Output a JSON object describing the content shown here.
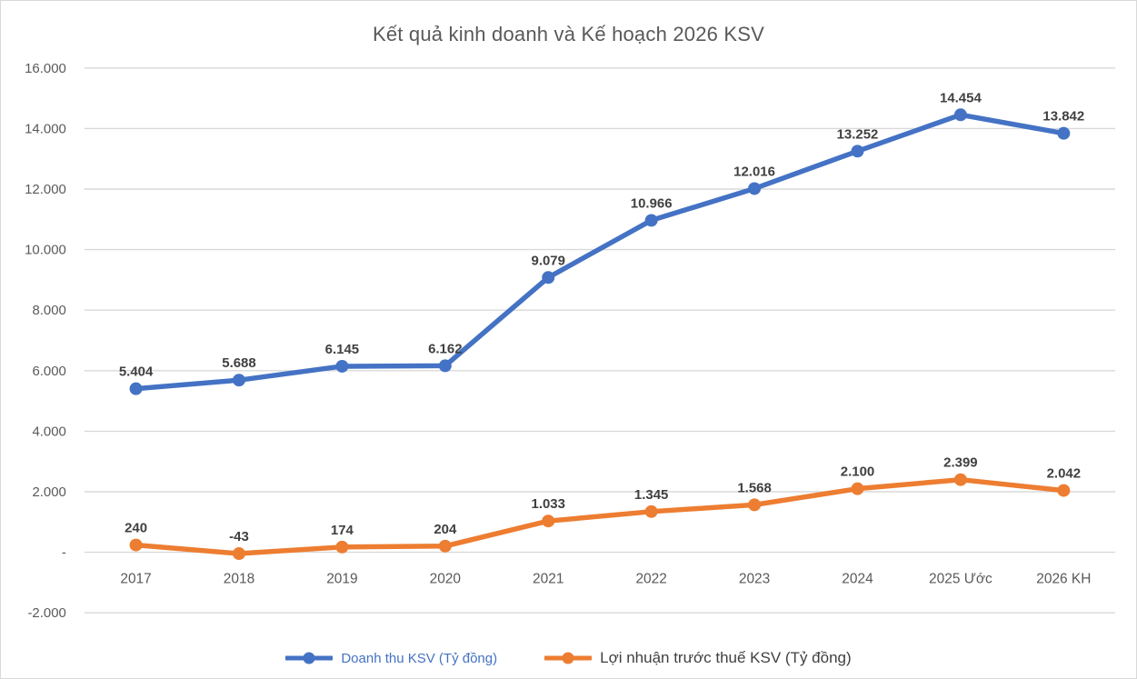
{
  "title": "Kết quả kinh doanh và Kế hoạch 2026 KSV",
  "chart_data": {
    "type": "line",
    "title": "Kết quả kinh doanh và Kế hoạch 2026 KSV",
    "categories": [
      "2017",
      "2018",
      "2019",
      "2020",
      "2021",
      "2022",
      "2023",
      "2024",
      "2025 Ước",
      "2026 KH"
    ],
    "series": [
      {
        "name": "Doanh thu KSV (Tỷ đồng)",
        "color": "#4472C4",
        "legend_text_color": "#4472C4",
        "values": [
          5404,
          5688,
          6145,
          6162,
          9079,
          10966,
          12016,
          13252,
          14454,
          13842
        ],
        "value_labels": [
          "5.404",
          "5.688",
          "6.145",
          "6.162",
          "9.079",
          "10.966",
          "12.016",
          "13.252",
          "14.454",
          "13.842"
        ]
      },
      {
        "name": "Lợi nhuận trước thuế KSV (Tỷ đồng)",
        "color": "#ED7D31",
        "legend_text_color": "#404040",
        "values": [
          240,
          -43,
          174,
          204,
          1033,
          1345,
          1568,
          2100,
          2399,
          2042
        ],
        "value_labels": [
          "240",
          "-43",
          "174",
          "204",
          "1.033",
          "1.345",
          "1.568",
          "2.100",
          "2.399",
          "2.042"
        ]
      }
    ],
    "y_axis": {
      "min": -2000,
      "max": 16000,
      "tick_step": 2000,
      "tick_labels": [
        "16.000",
        "14.000",
        "12.000",
        "10.000",
        "8.000",
        "6.000",
        "4.000",
        "2.000",
        "-",
        "-2.000"
      ]
    },
    "grid": true,
    "legend_position": "bottom",
    "colors": {
      "gridline": "#D9D9D9",
      "axis_text": "#595959",
      "data_label": "#404040",
      "title_text": "#595959",
      "border": "#D9D9D9"
    }
  }
}
